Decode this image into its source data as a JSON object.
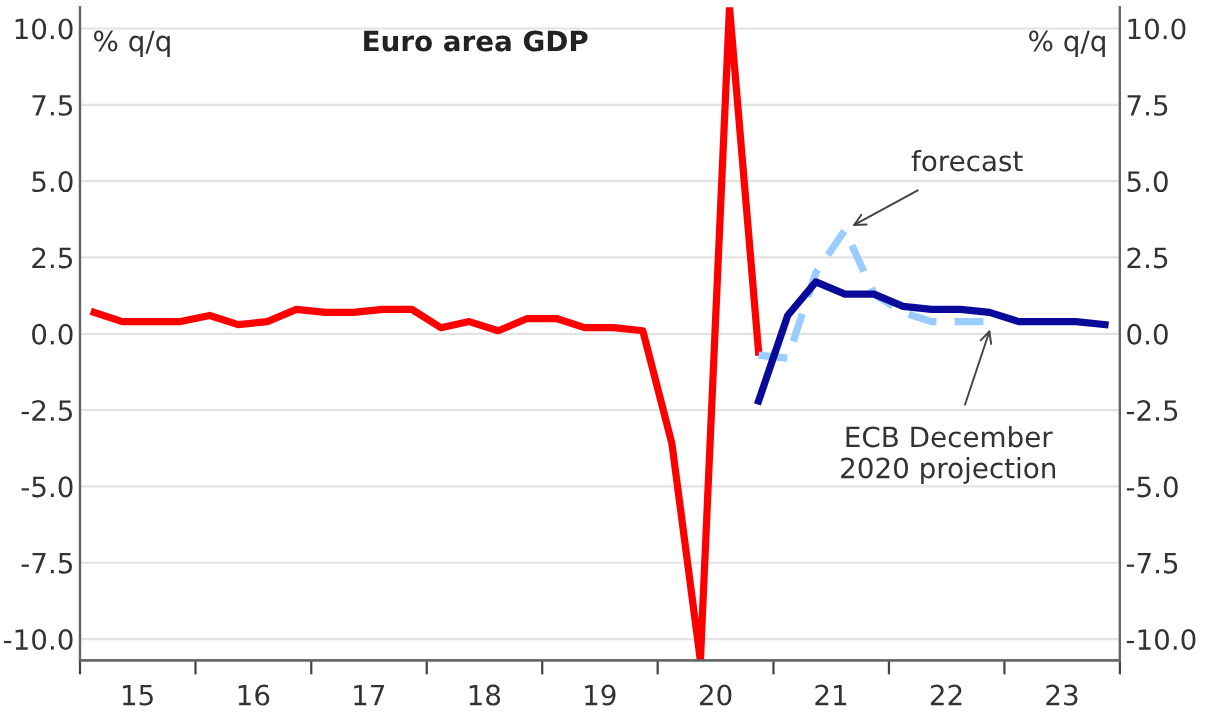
{
  "chart_data": {
    "type": "line",
    "title": "Euro area GDP",
    "ylabel": "% q/q",
    "y2label": "% q/q",
    "x": [
      "2015-02-15",
      "2015-05-15",
      "2015-08-15",
      "2015-11-15",
      "2016-02-15",
      "2016-05-15",
      "2016-08-15",
      "2016-11-15",
      "2017-02-15",
      "2017-05-15",
      "2017-08-15",
      "2017-11-15",
      "2018-02-15",
      "2018-05-15",
      "2018-08-15",
      "2018-11-15",
      "2019-02-15",
      "2019-05-15",
      "2019-08-15",
      "2019-11-15",
      "2020-02-15",
      "2020-05-15",
      "2020-08-15",
      "2020-11-15"
    ],
    "series": [
      {
        "color": "#ff0000",
        "line_style": "solid",
        "values": [
          0.7,
          0.4,
          0.4,
          0.4,
          0.6,
          0.3,
          0.4,
          0.8,
          0.7,
          0.7,
          0.8,
          0.8,
          0.2,
          0.4,
          0.1,
          0.5,
          0.5,
          0.2,
          0.2,
          0.1,
          -3.6,
          -10.7,
          10.7,
          -0.6
        ]
      },
      {
        "color": "#99ccff",
        "line_style": "dashed",
        "x": [
          "2020-11-15",
          "2021-02-15",
          "2021-05-15",
          "2021-08-15",
          "2021-11-15",
          "2022-02-15",
          "2022-05-15",
          "2022-08-15",
          "2022-11-15"
        ],
        "values": [
          -0.7,
          -0.8,
          2.0,
          3.4,
          1.3,
          0.7,
          0.4,
          0.4,
          0.4
        ]
      },
      {
        "color": "#0a0a9a",
        "line_style": "solid",
        "x": [
          "2020-11-15",
          "2021-02-15",
          "2021-05-15",
          "2021-08-15",
          "2021-11-15",
          "2022-02-15",
          "2022-05-15",
          "2022-08-15",
          "2022-11-15",
          "2023-02-15",
          "2023-05-15",
          "2023-08-15",
          "2023-11-15"
        ],
        "values": [
          -2.2,
          0.6,
          1.7,
          1.3,
          1.3,
          0.9,
          0.8,
          0.8,
          0.7,
          0.4,
          0.4,
          0.4,
          0.3
        ]
      }
    ],
    "annotations": [
      {
        "text": "forecast",
        "x": "2021-08-15",
        "y": 3.4
      },
      {
        "text": "ECB December\n2020 projection",
        "x": "2022-11-25",
        "y": 0.4
      }
    ],
    "xlim": [
      "2015-01-01",
      "2024-01-01"
    ],
    "xticks": [
      {
        "value": "2015-01-01",
        "label": null
      },
      {
        "value": "2016-01-01",
        "label": null
      },
      {
        "value": "2017-01-01",
        "label": null
      },
      {
        "value": "2018-01-01",
        "label": null
      },
      {
        "value": "2019-01-01",
        "label": null
      },
      {
        "value": "2020-01-01",
        "label": null
      },
      {
        "value": "2021-01-01",
        "label": null
      },
      {
        "value": "2022-01-01",
        "label": null
      },
      {
        "value": "2023-01-01",
        "label": null
      },
      {
        "value": "2024-01-01",
        "label": null
      },
      {
        "value": "2015-07-02",
        "label": "15"
      },
      {
        "value": "2016-07-02",
        "label": "16"
      },
      {
        "value": "2017-07-02",
        "label": "17"
      },
      {
        "value": "2018-07-02",
        "label": "18"
      },
      {
        "value": "2019-07-02",
        "label": "19"
      },
      {
        "value": "2020-07-02",
        "label": "20"
      },
      {
        "value": "2021-07-02",
        "label": "21"
      },
      {
        "value": "2022-07-02",
        "label": "22"
      },
      {
        "value": "2023-07-02",
        "label": "23"
      }
    ],
    "ylim": [
      -10.7,
      10.7
    ],
    "yticks": [
      {
        "value": 10,
        "label": "10.0"
      },
      {
        "value": 7.5,
        "label": "7.5"
      },
      {
        "value": 5,
        "label": "5.0"
      },
      {
        "value": 2.5,
        "label": "2.5"
      },
      {
        "value": 0,
        "label": "0.0"
      },
      {
        "value": -2.5,
        "label": "-2.5"
      },
      {
        "value": -5,
        "label": "-5.0"
      },
      {
        "value": -7.5,
        "label": "-7.5"
      },
      {
        "value": -10,
        "label": "-10.0"
      }
    ],
    "y2lim": [
      -10.7,
      10.7
    ],
    "y2ticks": [
      {
        "value": 10,
        "label": "10.0"
      },
      {
        "value": 7.5,
        "label": "7.5"
      },
      {
        "value": 5,
        "label": "5.0"
      },
      {
        "value": 2.5,
        "label": "2.5"
      },
      {
        "value": 0,
        "label": "0.0"
      },
      {
        "value": -2.5,
        "label": "-2.5"
      },
      {
        "value": -5,
        "label": "-5.0"
      },
      {
        "value": -7.5,
        "label": "-7.5"
      },
      {
        "value": -10,
        "label": "-10.0"
      }
    ],
    "grid": "y",
    "legend": false
  }
}
